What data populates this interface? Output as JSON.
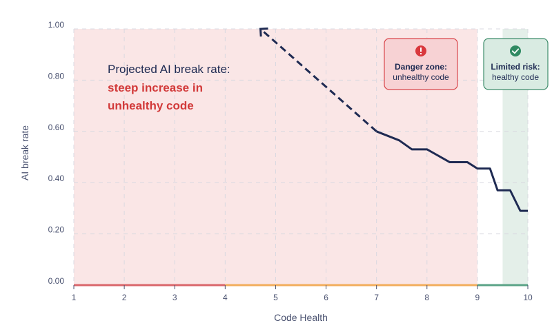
{
  "chart_data": {
    "type": "line",
    "xlabel": "Code Health",
    "ylabel": "AI break rate",
    "xlim": [
      1,
      10
    ],
    "ylim": [
      0,
      1
    ],
    "x_ticks": [
      "1",
      "2",
      "3",
      "4",
      "5",
      "6",
      "7",
      "8",
      "9",
      "10"
    ],
    "y_ticks": [
      "0.00",
      "0.20",
      "0.40",
      "0.60",
      "0.80",
      "1.00"
    ],
    "grid": true,
    "series": [
      {
        "style": "solid",
        "color": "#1e2a52",
        "x": [
          7.0,
          7.45,
          7.7,
          8.0,
          8.45,
          8.8,
          9.0,
          9.25,
          9.4,
          9.65,
          9.85,
          10.0
        ],
        "y": [
          0.6,
          0.565,
          0.53,
          0.53,
          0.48,
          0.48,
          0.455,
          0.455,
          0.37,
          0.37,
          0.29,
          0.29
        ]
      },
      {
        "style": "dashed",
        "color": "#1e2a52",
        "arrow": true,
        "x": [
          7.0,
          4.7
        ],
        "y": [
          0.6,
          1.0
        ]
      }
    ],
    "regions": [
      {
        "name": "danger",
        "x_from": 1,
        "x_to": 9,
        "color": "#fae6e6"
      },
      {
        "name": "limited",
        "x_from": 9.5,
        "x_to": 10,
        "color": "#e4efe9"
      }
    ],
    "axis_segments": [
      {
        "x_from": 1,
        "x_to": 4,
        "color": "#d9666b"
      },
      {
        "x_from": 4,
        "x_to": 9,
        "color": "#f2ad5c"
      },
      {
        "x_from": 9,
        "x_to": 10,
        "color": "#5aa386"
      }
    ],
    "annotations": {
      "headline_line1": "Projected AI break rate:",
      "headline_line2": "steep increase in",
      "headline_line3": "unhealthy code",
      "danger_title": "Danger zone:",
      "danger_sub": "unhealthy code",
      "limited_title": "Limited risk:",
      "limited_sub": "healthy code"
    }
  },
  "colors": {
    "danger_box_fill": "#f7d2d4",
    "danger_box_stroke": "#d9474c",
    "limited_box_fill": "#d9ebe2",
    "limited_box_stroke": "#3e8c6b",
    "warning_icon": "#d9383d",
    "check_icon": "#2f8a62"
  },
  "icons": {
    "danger": "warning-icon",
    "limited": "check-circle-icon"
  }
}
